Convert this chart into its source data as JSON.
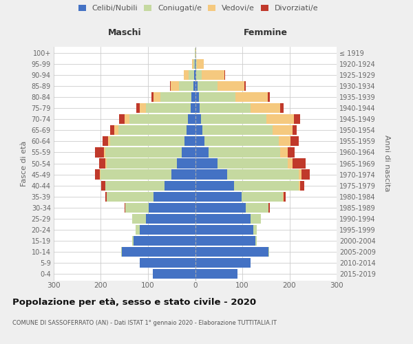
{
  "age_groups": [
    "0-4",
    "5-9",
    "10-14",
    "15-19",
    "20-24",
    "25-29",
    "30-34",
    "35-39",
    "40-44",
    "45-49",
    "50-54",
    "55-59",
    "60-64",
    "65-69",
    "70-74",
    "75-79",
    "80-84",
    "85-89",
    "90-94",
    "95-99",
    "100+"
  ],
  "birth_years": [
    "2015-2019",
    "2010-2014",
    "2005-2009",
    "2000-2004",
    "1995-1999",
    "1990-1994",
    "1985-1989",
    "1980-1984",
    "1975-1979",
    "1970-1974",
    "1965-1969",
    "1960-1964",
    "1955-1959",
    "1950-1954",
    "1945-1949",
    "1940-1944",
    "1935-1939",
    "1930-1934",
    "1925-1929",
    "1920-1924",
    "≤ 1919"
  ],
  "maschi": {
    "celibe": [
      90,
      118,
      155,
      130,
      118,
      105,
      98,
      88,
      65,
      50,
      38,
      28,
      22,
      18,
      15,
      10,
      8,
      4,
      2,
      1,
      0
    ],
    "coniugato": [
      0,
      0,
      2,
      3,
      8,
      28,
      50,
      100,
      125,
      150,
      150,
      162,
      158,
      145,
      125,
      95,
      65,
      30,
      12,
      3,
      1
    ],
    "vedovo": [
      0,
      0,
      0,
      0,
      0,
      0,
      0,
      0,
      1,
      2,
      3,
      4,
      5,
      8,
      10,
      12,
      15,
      18,
      10,
      2,
      0
    ],
    "divorziato": [
      0,
      0,
      0,
      0,
      0,
      0,
      1,
      3,
      8,
      10,
      12,
      18,
      12,
      10,
      12,
      8,
      5,
      2,
      0,
      0,
      0
    ]
  },
  "femmine": {
    "nubile": [
      90,
      118,
      155,
      128,
      123,
      118,
      108,
      98,
      82,
      68,
      48,
      28,
      20,
      16,
      13,
      10,
      8,
      5,
      2,
      1,
      1
    ],
    "coniugata": [
      0,
      0,
      2,
      2,
      8,
      22,
      48,
      88,
      138,
      152,
      148,
      152,
      158,
      148,
      138,
      108,
      78,
      42,
      12,
      3,
      0
    ],
    "vedova": [
      0,
      0,
      0,
      0,
      0,
      0,
      0,
      2,
      3,
      5,
      11,
      17,
      24,
      43,
      58,
      62,
      68,
      58,
      48,
      14,
      1
    ],
    "divorziata": [
      0,
      0,
      0,
      0,
      0,
      0,
      2,
      4,
      8,
      18,
      28,
      14,
      18,
      8,
      14,
      8,
      5,
      2,
      1,
      0,
      0
    ]
  },
  "colors": {
    "celibe": "#4472C4",
    "coniugato": "#C5D9A0",
    "vedovo": "#F5C97F",
    "divorziato": "#C0392B"
  },
  "xlim": 300,
  "title": "Popolazione per età, sesso e stato civile - 2020",
  "subtitle": "COMUNE DI SASSOFERRATO (AN) - Dati ISTAT 1° gennaio 2020 - Elaborazione TUTTITALIA.IT",
  "ylabel_left": "Fasce di età",
  "ylabel_right": "Anni di nascita",
  "xlabel_left": "Maschi",
  "xlabel_right": "Femmine",
  "bg_color": "#efefef",
  "plot_bg_color": "#ffffff"
}
